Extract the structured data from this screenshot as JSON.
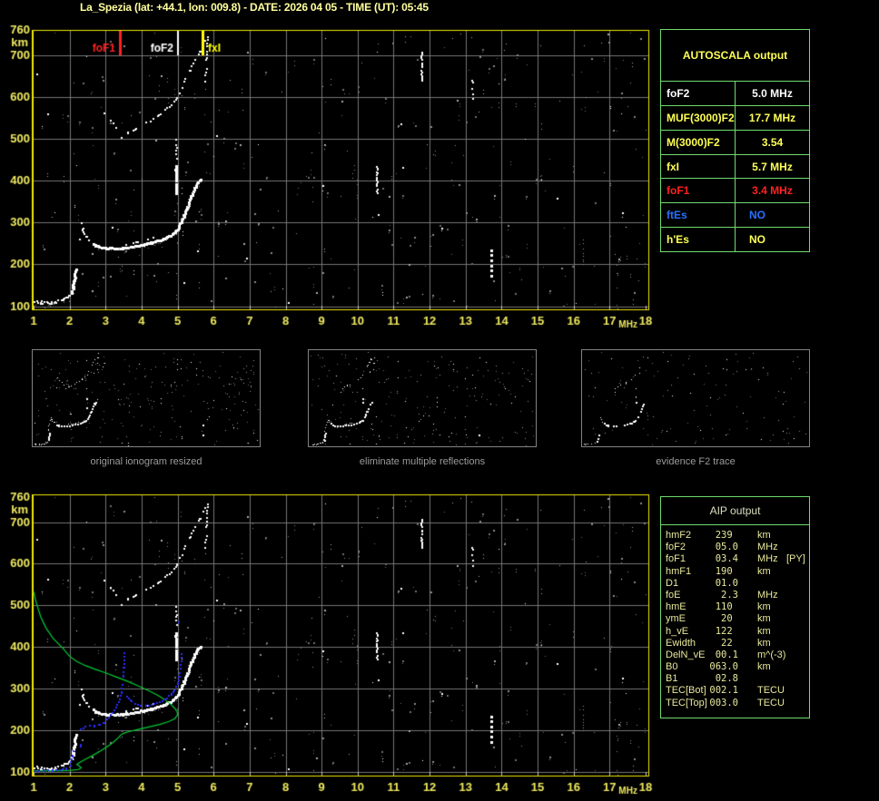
{
  "title": "La_Spezia (lat: +44.1, lon: 009.8) - DATE: 2026 04 05 - TIME (UT): 05:45",
  "colors": {
    "plot_border": "#f0e800",
    "axis_label": "#efe95f",
    "grid": "#757575",
    "table_border": "#6fdc6f",
    "title": "#ffff9e",
    "caption": "#9c9c9c",
    "profile_green": "#00cc33",
    "restored_blue": "#2a2aff",
    "marker_red": "#ff2222",
    "marker_white": "#ffffff",
    "marker_yellow": "#ffff00"
  },
  "autoscala_table": {
    "header": "AUTOSCALA output",
    "rows": [
      {
        "label": "foF2",
        "value": "5.0 MHz",
        "color": "#ffffff"
      },
      {
        "label": "MUF(3000)F2",
        "value": "17.7 MHz",
        "color": "#ffff55"
      },
      {
        "label": "M(3000)F2",
        "value": "3.54",
        "color": "#ffff55"
      },
      {
        "label": "fxI",
        "value": "5.7 MHz",
        "color": "#ffff55"
      },
      {
        "label": "foF1",
        "value": "3.4 MHz",
        "color": "#ff2222"
      },
      {
        "label": "ftEs",
        "value": "NO",
        "color": "#2970ff"
      },
      {
        "label": "h'Es",
        "value": "NO",
        "color": "#ffff55"
      }
    ]
  },
  "aip_table": {
    "header": "AIP output",
    "rows": [
      {
        "label": "hmF2",
        "value": "239 ",
        "unit": "km",
        "extra": ""
      },
      {
        "label": "foF2",
        "value": "05.0",
        "unit": "MHz",
        "extra": ""
      },
      {
        "label": "foF1",
        "value": "03.4",
        "unit": "MHz",
        "extra": "[PY]"
      },
      {
        "label": "hmF1",
        "value": "190 ",
        "unit": "km",
        "extra": ""
      },
      {
        "label": "D1",
        "value": "01.0",
        "unit": "",
        "extra": ""
      },
      {
        "label": "foE",
        "value": " 2.3",
        "unit": "MHz",
        "extra": ""
      },
      {
        "label": "hmE",
        "value": "110 ",
        "unit": "km",
        "extra": ""
      },
      {
        "label": "ymE",
        "value": " 20 ",
        "unit": "km",
        "extra": ""
      },
      {
        "label": "h_vE",
        "value": "122 ",
        "unit": "km",
        "extra": ""
      },
      {
        "label": "Ewidth",
        "value": " 22 ",
        "unit": "km",
        "extra": ""
      },
      {
        "label": "DelN_vE",
        "value": "00.1",
        "unit": "m^(-3)",
        "extra": ""
      },
      {
        "label": "B0",
        "value": "063.0",
        "unit": "km",
        "extra": ""
      },
      {
        "label": "B1",
        "value": "02.8",
        "unit": "",
        "extra": ""
      },
      {
        "label": "TEC[Bot]",
        "value": "002.1",
        "unit": "TECU",
        "extra": ""
      },
      {
        "label": "TEC[Top]",
        "value": "003.0",
        "unit": "TECU",
        "extra": ""
      }
    ]
  },
  "thumbnails": [
    {
      "caption": "original ionogram resized",
      "noise": 240,
      "densMul": 1.0,
      "skip": []
    },
    {
      "caption": "eliminate multiple reflections",
      "noise": 205,
      "densMul": 0.9,
      "skip": [
        "second-hop-flat"
      ]
    },
    {
      "caption": "evidence F2 trace",
      "noise": 125,
      "densMul": 0.5,
      "skip": [
        "second-hop-flat",
        "f-trace-split",
        "streak-8.1",
        "e-upper-scatter"
      ]
    }
  ],
  "chart_data": {
    "type": "scatter",
    "title": "vertical incidence ionogram: virtual height (km) vs frequency (MHz)",
    "xlabel": "MHz",
    "ylabel": "km",
    "xlim": [
      1,
      18
    ],
    "ylim": [
      90,
      760
    ],
    "x_ticks": [
      1,
      2,
      3,
      4,
      5,
      6,
      7,
      8,
      9,
      10,
      11,
      12,
      13,
      14,
      15,
      16,
      17,
      18
    ],
    "y_ticks": [
      100,
      200,
      300,
      400,
      500,
      600,
      700,
      760
    ],
    "grid": true,
    "plots": [
      {
        "id": "main-ionogram",
        "markers": [
          {
            "label": "foF1",
            "f": 3.4,
            "color": "#ff2222",
            "w": 3
          },
          {
            "label": "foF2",
            "f": 5.0,
            "color": "#ffffff",
            "w": 2
          },
          {
            "label": "fxI",
            "f": 5.7,
            "color": "#ffff00",
            "w": 3
          }
        ]
      },
      {
        "id": "profile-ionogram",
        "overlays": [
          "electron_density_profile",
          "restored_trace"
        ]
      }
    ],
    "noise": {
      "seed": 12345,
      "count": 390
    },
    "ionogram_traces": [
      {
        "n": "e-trace",
        "p": [
          [
            1.02,
            112
          ],
          [
            1.2,
            110
          ],
          [
            1.4,
            110
          ],
          [
            1.6,
            112
          ],
          [
            1.78,
            116
          ],
          [
            1.92,
            122
          ],
          [
            2.0,
            128
          ]
        ],
        "s": 2,
        "st": 2,
        "d": 0.95,
        "j": 1.6,
        "halo": true
      },
      {
        "n": "e-hook",
        "p": [
          [
            2.03,
            134
          ],
          [
            2.07,
            148
          ],
          [
            2.1,
            162
          ],
          [
            2.13,
            178
          ],
          [
            2.15,
            190
          ]
        ],
        "s": 3,
        "st": 2,
        "d": 0.85,
        "j": 0.8
      },
      {
        "n": "e-upper-scatter",
        "p": [
          [
            2.05,
            205
          ],
          [
            2.12,
            222
          ],
          [
            2.1,
            240
          ],
          [
            2.2,
            252
          ],
          [
            2.25,
            266
          ],
          [
            2.18,
            278
          ]
        ],
        "s": 2,
        "st": 5,
        "d": 0.45,
        "j": 2
      },
      {
        "n": "f1-cusp",
        "p": [
          [
            2.3,
            298
          ],
          [
            2.34,
            286
          ],
          [
            2.38,
            276
          ],
          [
            2.44,
            268
          ],
          [
            2.52,
            262
          ]
        ],
        "s": 2,
        "st": 3,
        "d": 0.7,
        "j": 1
      },
      {
        "n": "f-trace-main",
        "p": [
          [
            2.58,
            258
          ],
          [
            2.7,
            248
          ],
          [
            2.85,
            243
          ],
          [
            3.05,
            240
          ],
          [
            3.25,
            240
          ],
          [
            3.45,
            241
          ],
          [
            3.65,
            243
          ],
          [
            3.85,
            246
          ],
          [
            4.05,
            250
          ],
          [
            4.25,
            254
          ],
          [
            4.45,
            259
          ],
          [
            4.62,
            264
          ],
          [
            4.78,
            271
          ],
          [
            4.9,
            280
          ],
          [
            5.0,
            291
          ],
          [
            5.08,
            304
          ],
          [
            5.16,
            320
          ],
          [
            5.25,
            340
          ],
          [
            5.34,
            361
          ],
          [
            5.43,
            381
          ],
          [
            5.52,
            396
          ],
          [
            5.62,
            404
          ]
        ],
        "s": 3,
        "st": 2,
        "d": 0.95,
        "j": 0.6,
        "halo": true
      },
      {
        "n": "f-trace-split",
        "p": [
          [
            3.55,
            250
          ],
          [
            3.75,
            253
          ],
          [
            3.95,
            257
          ],
          [
            4.15,
            261
          ],
          [
            4.3,
            264
          ]
        ],
        "s": 2,
        "st": 3,
        "d": 0.5,
        "j": 0.6
      },
      {
        "n": "fof2-streak",
        "p": [
          [
            4.93,
            372
          ],
          [
            4.93,
            436
          ]
        ],
        "s": 3,
        "st": 2,
        "d": 0.9,
        "j": 0.4
      },
      {
        "n": "fof2-streak-upper",
        "p": [
          [
            4.95,
            448
          ],
          [
            4.95,
            505
          ]
        ],
        "s": 2,
        "st": 3,
        "d": 0.6,
        "j": 0.5
      },
      {
        "n": "second-hop",
        "p": [
          [
            3.42,
            505
          ],
          [
            3.62,
            517
          ],
          [
            3.82,
            526
          ],
          [
            4.02,
            534
          ],
          [
            4.22,
            544
          ],
          [
            4.42,
            556
          ],
          [
            4.62,
            569
          ],
          [
            4.82,
            584
          ],
          [
            4.98,
            601
          ],
          [
            5.1,
            623
          ],
          [
            5.2,
            646
          ],
          [
            5.33,
            667
          ],
          [
            5.47,
            688
          ],
          [
            5.6,
            710
          ],
          [
            5.72,
            735
          ]
        ],
        "s": 2,
        "st": 4,
        "d": 0.65,
        "j": 1
      },
      {
        "n": "second-hop-flat",
        "p": [
          [
            2.78,
            580
          ],
          [
            2.95,
            562
          ],
          [
            3.12,
            546
          ],
          [
            3.28,
            530
          ]
        ],
        "s": 2,
        "st": 5,
        "d": 0.4,
        "j": 1.2
      },
      {
        "n": "x-top",
        "p": [
          [
            5.74,
            640
          ],
          [
            5.78,
            682
          ],
          [
            5.8,
            724
          ],
          [
            5.83,
            752
          ]
        ],
        "s": 2,
        "st": 3,
        "d": 0.7,
        "j": 0.6
      },
      {
        "n": "streak-8.1",
        "p": [
          [
            8.07,
            96
          ],
          [
            8.07,
            118
          ]
        ],
        "s": 2,
        "st": 4,
        "d": 0.7,
        "j": 0.4
      },
      {
        "n": "streak-10.5",
        "p": [
          [
            10.52,
            372
          ],
          [
            10.52,
            436
          ]
        ],
        "s": 2,
        "st": 2,
        "d": 0.85,
        "j": 0.4
      },
      {
        "n": "streak-11.8",
        "p": [
          [
            11.76,
            640
          ],
          [
            11.76,
            708
          ]
        ],
        "s": 2,
        "st": 2,
        "d": 0.85,
        "j": 0.4
      },
      {
        "n": "streak-13.2",
        "p": [
          [
            13.17,
            597
          ],
          [
            13.17,
            641
          ]
        ],
        "s": 2,
        "st": 3,
        "d": 0.7,
        "j": 0.4
      },
      {
        "n": "streak-13.7",
        "p": [
          [
            13.68,
            176
          ],
          [
            13.68,
            248
          ]
        ],
        "s": 3,
        "st": 6,
        "d": 0.8,
        "j": 0.5
      },
      {
        "n": "streak-16.3",
        "p": [
          [
            16.26,
            188
          ],
          [
            16.26,
            258
          ]
        ],
        "s": 1,
        "st": 3,
        "d": 0.6,
        "j": 0.5,
        "c": "#9a9a9a"
      },
      {
        "n": "streak-17.1",
        "p": [
          [
            17.2,
            95
          ],
          [
            17.2,
            198
          ]
        ],
        "s": 1,
        "st": 5,
        "d": 0.5,
        "j": 0.6,
        "c": "#8a8a8a"
      }
    ],
    "electron_density_profile": {
      "color": "#00cc33",
      "points": [
        [
          1.0,
          533
        ],
        [
          1.08,
          505
        ],
        [
          1.2,
          472
        ],
        [
          1.35,
          445
        ],
        [
          1.55,
          420
        ],
        [
          1.8,
          398
        ],
        [
          2.0,
          378
        ],
        [
          2.2,
          365
        ],
        [
          2.45,
          355
        ],
        [
          2.7,
          347
        ],
        [
          3.0,
          338
        ],
        [
          3.3,
          328
        ],
        [
          3.6,
          318
        ],
        [
          3.9,
          307
        ],
        [
          4.2,
          295
        ],
        [
          4.45,
          284
        ],
        [
          4.65,
          273
        ],
        [
          4.82,
          262
        ],
        [
          4.93,
          252
        ],
        [
          4.99,
          244
        ],
        [
          5.0,
          237
        ],
        [
          4.92,
          228
        ],
        [
          4.75,
          221
        ],
        [
          4.5,
          214
        ],
        [
          4.2,
          208
        ],
        [
          3.9,
          202
        ],
        [
          3.65,
          197
        ],
        [
          3.5,
          193
        ],
        [
          3.42,
          189
        ],
        [
          3.35,
          182
        ],
        [
          3.22,
          172
        ],
        [
          3.05,
          161
        ],
        [
          2.85,
          150
        ],
        [
          2.65,
          140
        ],
        [
          2.45,
          131
        ],
        [
          2.3,
          124
        ],
        [
          2.2,
          118
        ],
        [
          2.27,
          114
        ],
        [
          2.32,
          110
        ],
        [
          2.25,
          106
        ],
        [
          2.05,
          104
        ],
        [
          1.7,
          103
        ],
        [
          1.3,
          103
        ],
        [
          1.0,
          103
        ]
      ]
    },
    "restored_trace": {
      "color": "#2a2aff",
      "segments": [
        [
          [
            1.03,
            105
          ],
          [
            1.25,
            105
          ],
          [
            1.5,
            106
          ],
          [
            1.7,
            107
          ],
          [
            1.88,
            110
          ],
          [
            2.0,
            116
          ]
        ],
        [
          [
            2.02,
            126
          ],
          [
            2.06,
            140
          ],
          [
            2.09,
            152
          ]
        ],
        [
          [
            2.3,
            164
          ],
          [
            2.3,
            167
          ]
        ],
        [
          [
            2.28,
            205
          ],
          [
            2.42,
            210
          ],
          [
            2.55,
            212
          ],
          [
            2.68,
            212
          ],
          [
            2.8,
            215
          ],
          [
            2.92,
            220
          ],
          [
            3.02,
            228
          ],
          [
            3.12,
            238
          ],
          [
            3.22,
            250
          ],
          [
            3.3,
            263
          ],
          [
            3.37,
            277
          ],
          [
            3.42,
            293
          ],
          [
            3.45,
            312
          ],
          [
            3.47,
            332
          ],
          [
            3.48,
            352
          ],
          [
            3.49,
            371
          ],
          [
            3.5,
            388
          ]
        ],
        [
          [
            3.58,
            284
          ],
          [
            3.68,
            273
          ],
          [
            3.8,
            266
          ],
          [
            3.95,
            262
          ],
          [
            4.1,
            261
          ],
          [
            4.25,
            263
          ],
          [
            4.4,
            267
          ],
          [
            4.55,
            272
          ],
          [
            4.68,
            279
          ],
          [
            4.8,
            288
          ],
          [
            4.9,
            300
          ],
          [
            4.98,
            314
          ],
          [
            5.03,
            331
          ],
          [
            5.06,
            350
          ],
          [
            5.08,
            368
          ],
          [
            5.09,
            386
          ]
        ],
        [
          [
            5.03,
            462
          ],
          [
            5.03,
            468
          ]
        ]
      ]
    }
  }
}
